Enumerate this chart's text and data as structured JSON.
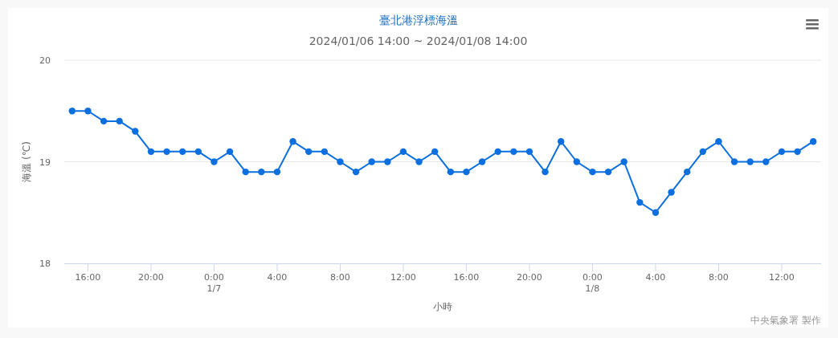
{
  "chart_data": {
    "type": "line",
    "title": "臺北港浮標海溫",
    "subtitle": "2024/01/06 14:00 ~ 2024/01/08 14:00",
    "xlabel": "小時",
    "ylabel": "海溫 (℃)",
    "annotations": [
      "中央氣象署 製作"
    ],
    "x": [
      "2024-01-06T15:00",
      "2024-01-06T16:00",
      "2024-01-06T17:00",
      "2024-01-06T18:00",
      "2024-01-06T19:00",
      "2024-01-06T20:00",
      "2024-01-06T21:00",
      "2024-01-06T22:00",
      "2024-01-06T23:00",
      "2024-01-07T00:00",
      "2024-01-07T01:00",
      "2024-01-07T02:00",
      "2024-01-07T03:00",
      "2024-01-07T04:00",
      "2024-01-07T05:00",
      "2024-01-07T06:00",
      "2024-01-07T07:00",
      "2024-01-07T08:00",
      "2024-01-07T09:00",
      "2024-01-07T10:00",
      "2024-01-07T11:00",
      "2024-01-07T12:00",
      "2024-01-07T13:00",
      "2024-01-07T14:00",
      "2024-01-07T15:00",
      "2024-01-07T16:00",
      "2024-01-07T17:00",
      "2024-01-07T18:00",
      "2024-01-07T19:00",
      "2024-01-07T20:00",
      "2024-01-07T21:00",
      "2024-01-07T22:00",
      "2024-01-07T23:00",
      "2024-01-08T00:00",
      "2024-01-08T01:00",
      "2024-01-08T02:00",
      "2024-01-08T03:00",
      "2024-01-08T04:00",
      "2024-01-08T05:00",
      "2024-01-08T06:00",
      "2024-01-08T07:00",
      "2024-01-08T08:00",
      "2024-01-08T09:00",
      "2024-01-08T10:00",
      "2024-01-08T11:00",
      "2024-01-08T12:00",
      "2024-01-08T13:00",
      "2024-01-08T14:00"
    ],
    "series": [
      {
        "color": "#0b6fe0",
        "values": [
          19.5,
          19.5,
          19.4,
          19.4,
          19.3,
          19.1,
          19.1,
          19.1,
          19.1,
          19.0,
          19.1,
          18.9,
          18.9,
          18.9,
          19.2,
          19.1,
          19.1,
          19.0,
          18.9,
          19.0,
          19.0,
          19.1,
          19.0,
          19.1,
          18.9,
          18.9,
          19.0,
          19.1,
          19.1,
          19.1,
          18.9,
          19.2,
          19.0,
          18.9,
          18.9,
          19.0,
          18.6,
          18.5,
          18.7,
          18.9,
          19.1,
          19.2,
          19.0,
          19.0,
          19.0,
          19.1,
          19.1,
          19.2
        ]
      }
    ],
    "xlim": [
      "2024-01-06T14:30",
      "2024-01-08T14:30"
    ],
    "xticks": [
      {
        "value": "2024-01-06T16:00",
        "label": "16:00"
      },
      {
        "value": "2024-01-06T20:00",
        "label": "20:00"
      },
      {
        "value": "2024-01-07T00:00",
        "label": "0:00\n1/7"
      },
      {
        "value": "2024-01-07T04:00",
        "label": "4:00"
      },
      {
        "value": "2024-01-07T08:00",
        "label": "8:00"
      },
      {
        "value": "2024-01-07T12:00",
        "label": "12:00"
      },
      {
        "value": "2024-01-07T16:00",
        "label": "16:00"
      },
      {
        "value": "2024-01-07T20:00",
        "label": "20:00"
      },
      {
        "value": "2024-01-08T00:00",
        "label": "0:00\n1/8"
      },
      {
        "value": "2024-01-08T04:00",
        "label": "4:00"
      },
      {
        "value": "2024-01-08T08:00",
        "label": "8:00"
      },
      {
        "value": "2024-01-08T12:00",
        "label": "12:00"
      }
    ],
    "ylim": [
      18,
      20
    ],
    "yticks": [
      18,
      19,
      20
    ],
    "grid": "y",
    "marker": "circle",
    "line_style": "solid"
  }
}
